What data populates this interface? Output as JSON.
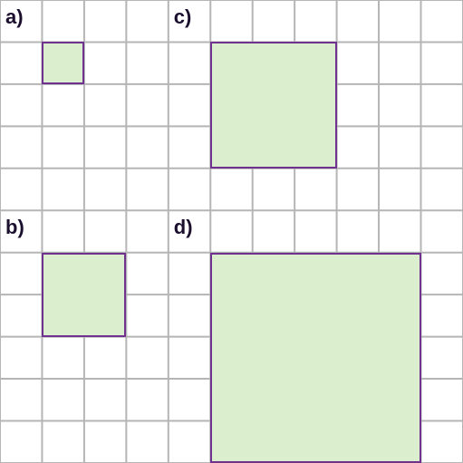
{
  "grid": {
    "cols": 11,
    "rows": 11,
    "cell_size": 46.45,
    "line_color": "#b5b5b5",
    "line_width": 2,
    "background": "#ffffff"
  },
  "labels": {
    "a": "a)",
    "b": "b)",
    "c": "c)",
    "d": "d)"
  },
  "label_style": {
    "font_size": 22,
    "color": "#1b0f2e"
  },
  "squares": {
    "a": {
      "col": 1,
      "row": 1,
      "size": 1
    },
    "b": {
      "col": 1,
      "row": 6,
      "size": 2
    },
    "c": {
      "col": 5,
      "row": 1,
      "size": 3
    },
    "d": {
      "col": 5,
      "row": 6,
      "size": 5
    }
  },
  "square_style": {
    "fill": "#dbeece",
    "stroke": "#6f328f",
    "stroke_width": 2
  },
  "label_positions": {
    "a": {
      "col": 0,
      "row": 0
    },
    "b": {
      "col": 0,
      "row": 5
    },
    "c": {
      "col": 4,
      "row": 0
    },
    "d": {
      "col": 4,
      "row": 5
    }
  }
}
